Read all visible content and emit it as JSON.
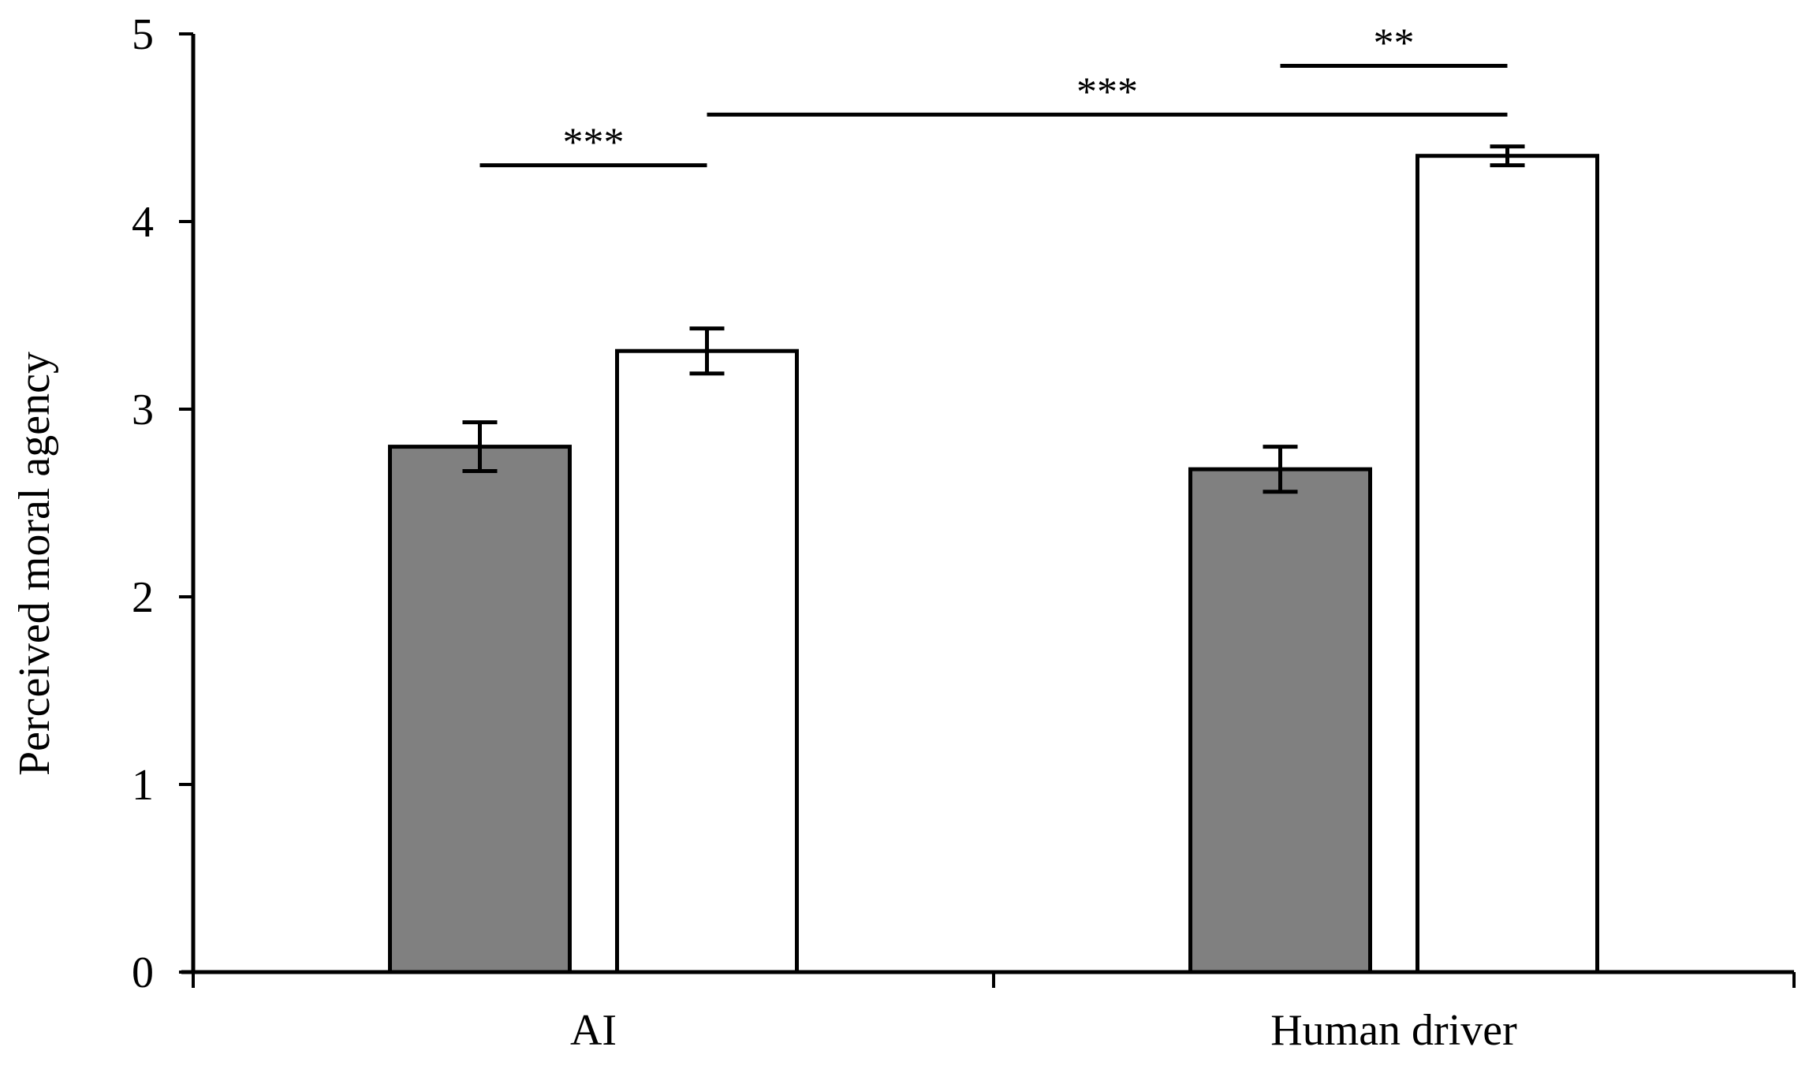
{
  "chart_data": {
    "type": "bar",
    "title": "",
    "xlabel": "",
    "ylabel": "Perceived moral agency",
    "ylim": [
      0,
      5
    ],
    "yticks": [
      0,
      1,
      2,
      3,
      4,
      5
    ],
    "grid": false,
    "categories": [
      "AI",
      "Human driver"
    ],
    "series": [
      {
        "color": "#808080",
        "values": [
          2.8,
          2.68
        ],
        "errors": [
          0.13,
          0.12
        ]
      },
      {
        "color": "#ffffff",
        "values": [
          3.31,
          4.35
        ],
        "errors": [
          0.12,
          0.05
        ]
      }
    ],
    "significance": [
      {
        "label": "***",
        "from": [
          0,
          0
        ],
        "to": [
          0,
          1
        ],
        "y": 4.3
      },
      {
        "label": "***",
        "from": [
          0,
          1
        ],
        "to": [
          1,
          1
        ],
        "y": 4.57
      },
      {
        "label": "**",
        "from": [
          1,
          0
        ],
        "to": [
          1,
          1
        ],
        "y": 4.83
      }
    ]
  }
}
